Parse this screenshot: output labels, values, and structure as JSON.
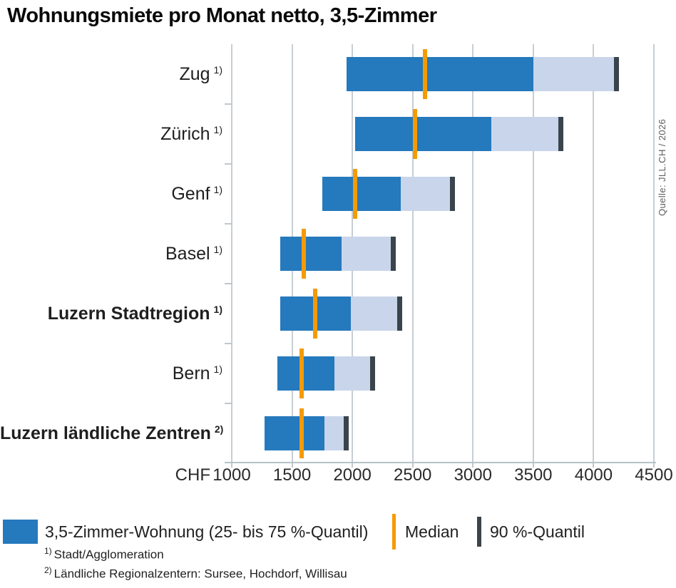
{
  "title": "Wohnungsmiete pro Monat netto, 3,5-Zimmer",
  "source": "Quelle: JLL.CH / 2026",
  "colors": {
    "bar": "#2579bd",
    "band": "#c9d5ea",
    "median": "#f59b00",
    "quantile90": "#39444c",
    "grid": "#c7ced4"
  },
  "chart_data": {
    "type": "bar",
    "orientation": "horizontal",
    "title": "Wohnungsmiete pro Monat netto, 3,5-Zimmer",
    "xlabel": "CHF",
    "xlim": [
      1000,
      4500
    ],
    "xticks": [
      1000,
      1500,
      2000,
      2500,
      3000,
      3500,
      4000,
      4500
    ],
    "grid": true,
    "categories": [
      "Zug",
      "Zürich",
      "Genf",
      "Basel",
      "Luzern Stadtregion",
      "Bern",
      "Luzern ländliche Zentren"
    ],
    "rows": [
      {
        "label": "Zug",
        "sup": "1)",
        "bold": false,
        "q25": 1950,
        "median": 2600,
        "q75": 3500,
        "q90": 4190
      },
      {
        "label": "Zürich",
        "sup": "1)",
        "bold": false,
        "q25": 2020,
        "median": 2520,
        "q75": 3150,
        "q90": 3730
      },
      {
        "label": "Genf",
        "sup": "1)",
        "bold": false,
        "q25": 1750,
        "median": 2020,
        "q75": 2400,
        "q90": 2830
      },
      {
        "label": "Basel",
        "sup": "1)",
        "bold": false,
        "q25": 1400,
        "median": 1600,
        "q75": 1910,
        "q90": 2340
      },
      {
        "label": "Luzern Stadtregion",
        "sup": "1)",
        "bold": true,
        "q25": 1400,
        "median": 1690,
        "q75": 1990,
        "q90": 2390
      },
      {
        "label": "Bern",
        "sup": "1)",
        "bold": false,
        "q25": 1380,
        "median": 1580,
        "q75": 1850,
        "q90": 2170
      },
      {
        "label": "Luzern ländliche Zentren",
        "sup": "2)",
        "bold": true,
        "q25": 1270,
        "median": 1580,
        "q75": 1770,
        "q90": 1950
      }
    ]
  },
  "axis": {
    "unit_label": "CHF"
  },
  "legend": {
    "items": [
      {
        "key": "iqr",
        "label": "3,5-Zimmer-Wohnung (25- bis 75 %-Quantil)"
      },
      {
        "key": "median",
        "label": "Median"
      },
      {
        "key": "q90",
        "label": "90 %-Quantil"
      }
    ]
  },
  "footnotes": [
    {
      "sup": "1)",
      "text": "Stadt/Agglomeration"
    },
    {
      "sup": "2)",
      "text": "Ländliche Regionalzentern: Sursee, Hochdorf, Willisau"
    }
  ]
}
